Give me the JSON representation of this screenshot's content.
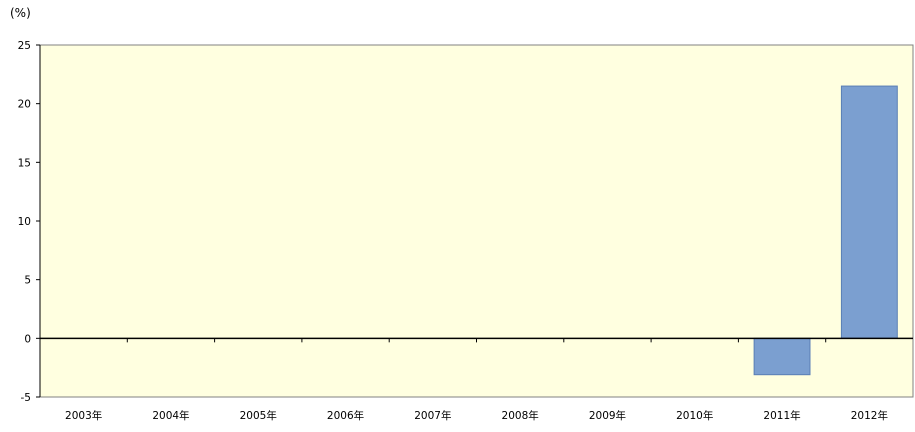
{
  "chart_data": {
    "type": "bar",
    "unit_label": "(%)",
    "categories": [
      "2003年",
      "2004年",
      "2005年",
      "2006年",
      "2007年",
      "2008年",
      "2009年",
      "2010年",
      "2011年",
      "2012年"
    ],
    "values": [
      null,
      null,
      null,
      null,
      null,
      null,
      null,
      null,
      -3.1,
      21.5
    ],
    "ylim": [
      -5,
      25
    ],
    "yticks": [
      -5,
      0,
      5,
      10,
      15,
      20,
      25
    ],
    "grid": false,
    "colors": {
      "bar": "#7b9fd0",
      "bar_stroke": "#5a7fb5",
      "plot_background": "#ffffe0",
      "axis": "#000000"
    }
  }
}
